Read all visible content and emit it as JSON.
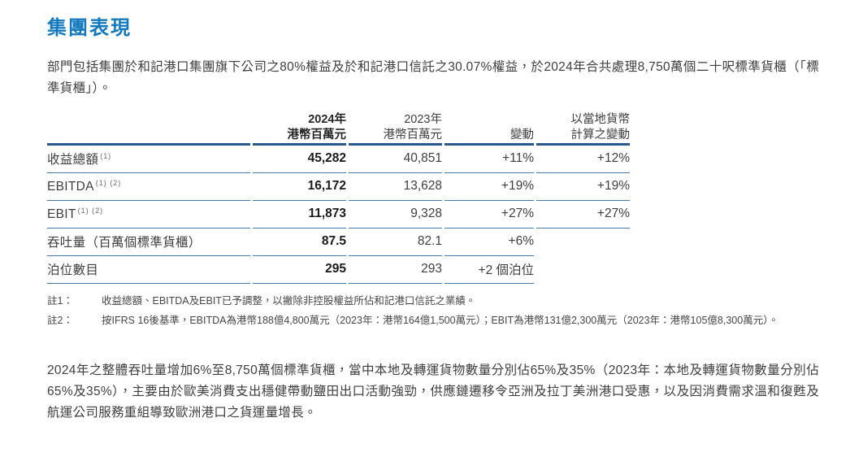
{
  "header": {
    "title": "集團表現"
  },
  "intro": "部門包括集團於和記港口集團旗下公司之80%權益及於和記港口信託之30.07%權益，於2024年合共處理8,750萬個二十呎標準貨櫃（「標準貨櫃」）。",
  "table": {
    "columns": {
      "metric": "",
      "y2024_line1": "2024年",
      "y2024_line2": "港幣百萬元",
      "y2023_line1": "2023年",
      "y2023_line2": "港幣百萬元",
      "change": "變動",
      "local_line1": "以當地貨幣",
      "local_line2": "計算之變動"
    },
    "rows": [
      {
        "label": "收益總額",
        "sup": "(1)",
        "v2024": "45,282",
        "v2023": "40,851",
        "change": "+11%",
        "local": "+12%"
      },
      {
        "label": "EBITDA",
        "sup": "(1) (2)",
        "v2024": "16,172",
        "v2023": "13,628",
        "change": "+19%",
        "local": "+19%"
      },
      {
        "label": "EBIT",
        "sup": "(1) (2)",
        "v2024": "11,873",
        "v2023": "9,328",
        "change": "+27%",
        "local": "+27%"
      },
      {
        "label": "吞吐量（百萬個標準貨櫃）",
        "sup": "",
        "v2024": "87.5",
        "v2023": "82.1",
        "change": "+6%",
        "local": ""
      },
      {
        "label": "泊位數目",
        "sup": "",
        "v2024": "295",
        "v2023": "293",
        "change": "+2 個泊位",
        "local": ""
      }
    ]
  },
  "footnotes": [
    {
      "label": "註1：",
      "text": "收益總額、EBITDA及EBIT已予調整，以撇除非控股權益所佔和記港口信託之業績。"
    },
    {
      "label": "註2：",
      "text": "按IFRS 16後基準，EBITDA為港幣188億4,800萬元（2023年：港幣164億1,500萬元）；EBIT為港幣131億2,300萬元（2023年：港幣105億8,300萬元）。"
    }
  ],
  "closing": "2024年之整體吞吐量增加6%至8,750萬個標準貨櫃，當中本地及轉運貨物數量分別佔65%及35%（2023年：本地及轉運貨物數量分別佔65%及35%），主要由於歐美消費支出穩健帶動鹽田出口活動強勁，供應鏈遷移令亞洲及拉丁美洲港口受惠，以及因消費需求溫和復甦及航運公司服務重組導致歐洲港口之貨運量增長。",
  "colors": {
    "title_blue": "#1279bd",
    "rule_thick": "#2a5a8c",
    "rule_thin": "#4579ab",
    "body_text": "#3f3f3f"
  }
}
